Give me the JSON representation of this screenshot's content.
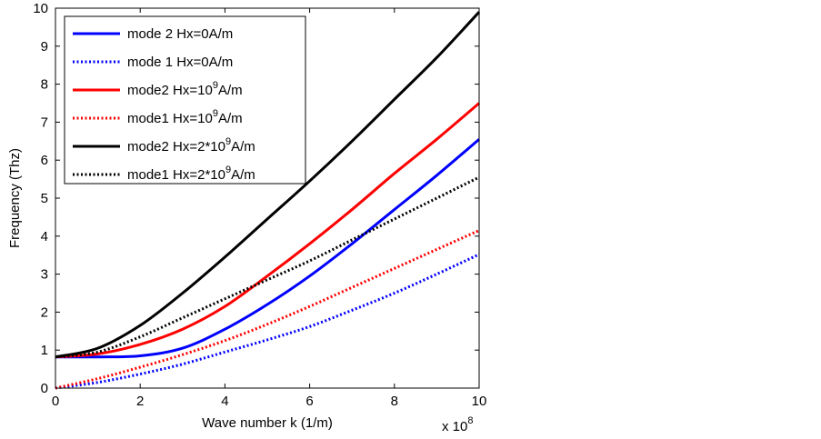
{
  "chart_data": {
    "type": "line",
    "title": "",
    "xlabel": "Wave number k  (1/m)",
    "ylabel": "Frequency (Thz)",
    "x_multiplier": {
      "base": "x 10",
      "exponent": "8"
    },
    "xlim": [
      0,
      10
    ],
    "ylim": [
      0,
      10
    ],
    "xticks": [
      0,
      2,
      4,
      6,
      8,
      10
    ],
    "yticks": [
      0,
      1,
      2,
      3,
      4,
      5,
      6,
      7,
      8,
      9,
      10
    ],
    "grid": false,
    "legend_position": "top-left",
    "x": [
      0,
      1,
      2,
      3,
      4,
      5,
      6,
      7,
      8,
      9,
      10
    ],
    "series": [
      {
        "name": "mode 2 Hx=0A/m",
        "legend_parts": [
          "mode 2 Hx=0A/m"
        ],
        "color": "#0000ff",
        "style": "solid",
        "values": [
          0.82,
          0.82,
          0.85,
          1.05,
          1.55,
          2.2,
          2.95,
          3.8,
          4.7,
          5.6,
          6.55
        ]
      },
      {
        "name": "mode 1 Hx=0A/m",
        "legend_parts": [
          "mode 1 Hx=0A/m"
        ],
        "color": "#0000ff",
        "style": "dotted",
        "values": [
          0.0,
          0.15,
          0.37,
          0.63,
          0.95,
          1.27,
          1.62,
          2.05,
          2.5,
          3.0,
          3.52
        ]
      },
      {
        "name": "mode2 Hx=10^9A/m",
        "legend_parts": [
          "mode2 Hx=10",
          "9",
          "A/m"
        ],
        "color": "#ff0000",
        "style": "solid",
        "values": [
          0.82,
          0.9,
          1.15,
          1.55,
          2.15,
          2.95,
          3.8,
          4.7,
          5.65,
          6.55,
          7.5
        ]
      },
      {
        "name": "mode1 Hx=10^9A/m",
        "legend_parts": [
          "mode1 Hx=10",
          "9",
          "A/m"
        ],
        "color": "#ff0000",
        "style": "dotted",
        "values": [
          0.0,
          0.25,
          0.55,
          0.88,
          1.25,
          1.68,
          2.15,
          2.65,
          3.15,
          3.65,
          4.15
        ]
      },
      {
        "name": "mode2 Hx=2*10^9A/m",
        "legend_parts": [
          "mode2 Hx=2*10",
          "9",
          "A/m"
        ],
        "color": "#000000",
        "style": "solid",
        "values": [
          0.82,
          1.05,
          1.65,
          2.5,
          3.45,
          4.45,
          5.45,
          6.5,
          7.6,
          8.7,
          9.9
        ]
      },
      {
        "name": "mode1 Hx=2*10^9A/m",
        "legend_parts": [
          "mode1 Hx=2*10",
          "9",
          "A/m"
        ],
        "color": "#000000",
        "style": "dotted",
        "values": [
          0.82,
          0.95,
          1.35,
          1.85,
          2.35,
          2.85,
          3.35,
          3.9,
          4.45,
          5.0,
          5.55
        ]
      }
    ]
  }
}
